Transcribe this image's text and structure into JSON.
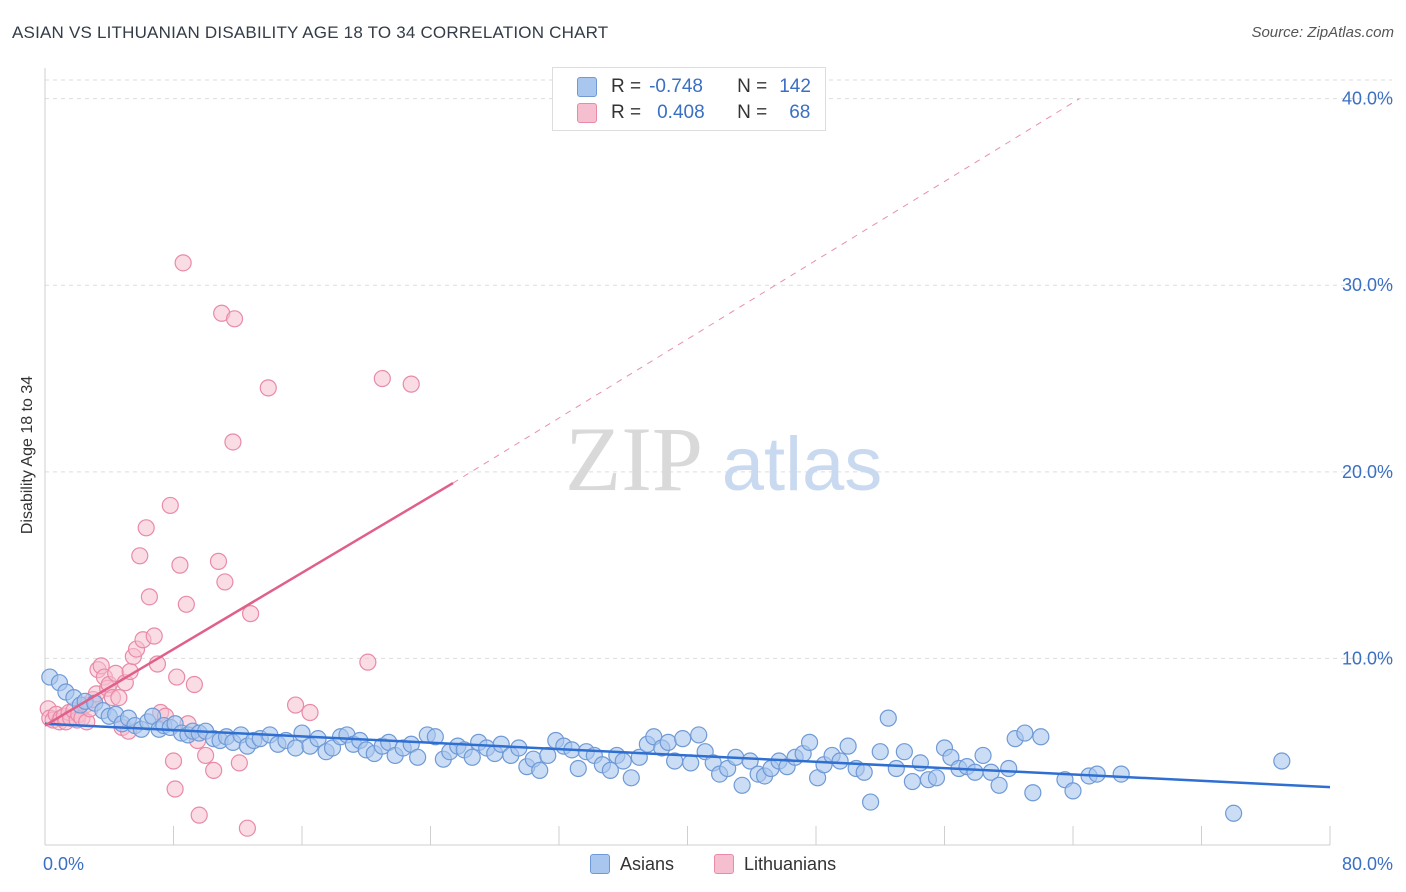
{
  "title": "ASIAN VS LITHUANIAN DISABILITY AGE 18 TO 34 CORRELATION CHART",
  "source": "Source: ZipAtlas.com",
  "watermark": {
    "zip": "ZIP",
    "atlas": "atlas"
  },
  "legend": {
    "asians": {
      "r_label": "R =",
      "r_value": "-0.748",
      "n_label": "N =",
      "n_value": "142"
    },
    "lithuanians": {
      "r_label": "R =",
      "r_value": "0.408",
      "n_label": "N =",
      "n_value": "68"
    }
  },
  "bottom_legend": {
    "asians": "Asians",
    "lithuanians": "Lithuanians"
  },
  "colors": {
    "asian_fill": "#a9c6ee",
    "asian_stroke": "#6f9ad6",
    "asian_line": "#2f6fd1",
    "lith_fill": "#f6bfd0",
    "lith_stroke": "#e98aa8",
    "lith_line": "#e0608a",
    "axis_text": "#3a6fc4",
    "grid": "#dddddd"
  },
  "chart_data": {
    "type": "scatter",
    "title": "ASIAN VS LITHUANIAN DISABILITY AGE 18 TO 34 CORRELATION CHART",
    "xlabel": "",
    "ylabel": "Disability Age 18 to 34",
    "xlim": [
      0,
      80
    ],
    "ylim": [
      0,
      41
    ],
    "x_tick_labels": [
      "0.0%",
      "80.0%"
    ],
    "y_ticks": [
      10,
      20,
      30,
      40
    ],
    "y_tick_labels": [
      "10.0%",
      "20.0%",
      "30.0%",
      "40.0%"
    ],
    "grid": true,
    "series": [
      {
        "name": "Asians",
        "R": -0.748,
        "N": 142,
        "trend": {
          "x": [
            0,
            80
          ],
          "y": [
            6.5,
            3.1
          ]
        },
        "points": [
          [
            0.3,
            9.0
          ],
          [
            0.9,
            8.7
          ],
          [
            1.3,
            8.2
          ],
          [
            1.8,
            7.9
          ],
          [
            2.2,
            7.5
          ],
          [
            2.5,
            7.7
          ],
          [
            3.1,
            7.6
          ],
          [
            3.6,
            7.2
          ],
          [
            4.0,
            6.9
          ],
          [
            4.4,
            7.0
          ],
          [
            4.8,
            6.5
          ],
          [
            5.2,
            6.8
          ],
          [
            5.6,
            6.4
          ],
          [
            6.0,
            6.2
          ],
          [
            6.4,
            6.6
          ],
          [
            6.7,
            6.9
          ],
          [
            7.1,
            6.2
          ],
          [
            7.4,
            6.4
          ],
          [
            7.8,
            6.3
          ],
          [
            8.1,
            6.5
          ],
          [
            8.5,
            6.0
          ],
          [
            8.9,
            5.9
          ],
          [
            9.2,
            6.1
          ],
          [
            9.6,
            6.0
          ],
          [
            10.0,
            6.1
          ],
          [
            10.5,
            5.7
          ],
          [
            10.9,
            5.6
          ],
          [
            11.3,
            5.8
          ],
          [
            11.7,
            5.5
          ],
          [
            12.2,
            5.9
          ],
          [
            12.6,
            5.3
          ],
          [
            13.0,
            5.6
          ],
          [
            13.4,
            5.7
          ],
          [
            14.0,
            5.9
          ],
          [
            14.5,
            5.4
          ],
          [
            15.0,
            5.6
          ],
          [
            15.6,
            5.2
          ],
          [
            16.0,
            6.0
          ],
          [
            16.5,
            5.3
          ],
          [
            17.0,
            5.7
          ],
          [
            17.5,
            5.0
          ],
          [
            17.9,
            5.2
          ],
          [
            18.4,
            5.8
          ],
          [
            18.8,
            5.9
          ],
          [
            19.2,
            5.4
          ],
          [
            19.6,
            5.6
          ],
          [
            20.0,
            5.1
          ],
          [
            20.5,
            4.9
          ],
          [
            21.0,
            5.3
          ],
          [
            21.4,
            5.5
          ],
          [
            21.8,
            4.8
          ],
          [
            22.3,
            5.2
          ],
          [
            22.8,
            5.4
          ],
          [
            23.2,
            4.7
          ],
          [
            23.8,
            5.9
          ],
          [
            24.3,
            5.8
          ],
          [
            24.8,
            4.6
          ],
          [
            25.2,
            5.0
          ],
          [
            25.7,
            5.3
          ],
          [
            26.1,
            5.1
          ],
          [
            26.6,
            4.7
          ],
          [
            27.0,
            5.5
          ],
          [
            27.5,
            5.2
          ],
          [
            28.0,
            4.9
          ],
          [
            28.4,
            5.4
          ],
          [
            29.0,
            4.8
          ],
          [
            29.5,
            5.2
          ],
          [
            30.0,
            4.2
          ],
          [
            30.4,
            4.6
          ],
          [
            30.8,
            4.0
          ],
          [
            31.3,
            4.8
          ],
          [
            31.8,
            5.6
          ],
          [
            32.3,
            5.3
          ],
          [
            32.8,
            5.1
          ],
          [
            33.2,
            4.1
          ],
          [
            33.7,
            5.0
          ],
          [
            34.2,
            4.8
          ],
          [
            34.7,
            4.3
          ],
          [
            35.2,
            4.0
          ],
          [
            35.6,
            4.8
          ],
          [
            36.0,
            4.5
          ],
          [
            36.5,
            3.6
          ],
          [
            37.0,
            4.7
          ],
          [
            37.5,
            5.4
          ],
          [
            37.9,
            5.8
          ],
          [
            38.4,
            5.2
          ],
          [
            38.8,
            5.5
          ],
          [
            39.2,
            4.5
          ],
          [
            39.7,
            5.7
          ],
          [
            40.2,
            4.4
          ],
          [
            40.7,
            5.9
          ],
          [
            41.1,
            5.0
          ],
          [
            41.6,
            4.4
          ],
          [
            42.0,
            3.8
          ],
          [
            42.5,
            4.1
          ],
          [
            43.0,
            4.7
          ],
          [
            43.4,
            3.2
          ],
          [
            43.9,
            4.5
          ],
          [
            44.4,
            3.8
          ],
          [
            44.8,
            3.7
          ],
          [
            45.2,
            4.1
          ],
          [
            45.7,
            4.5
          ],
          [
            46.2,
            4.2
          ],
          [
            46.7,
            4.7
          ],
          [
            47.2,
            4.9
          ],
          [
            47.6,
            5.5
          ],
          [
            48.1,
            3.6
          ],
          [
            48.5,
            4.3
          ],
          [
            49.0,
            4.8
          ],
          [
            49.5,
            4.5
          ],
          [
            50.0,
            5.3
          ],
          [
            50.5,
            4.1
          ],
          [
            51.0,
            3.9
          ],
          [
            51.4,
            2.3
          ],
          [
            52.0,
            5.0
          ],
          [
            52.5,
            6.8
          ],
          [
            53.0,
            4.1
          ],
          [
            53.5,
            5.0
          ],
          [
            54.0,
            3.4
          ],
          [
            54.5,
            4.4
          ],
          [
            55.0,
            3.5
          ],
          [
            55.5,
            3.6
          ],
          [
            56.0,
            5.2
          ],
          [
            56.4,
            4.7
          ],
          [
            56.9,
            4.1
          ],
          [
            57.4,
            4.2
          ],
          [
            57.9,
            3.9
          ],
          [
            58.4,
            4.8
          ],
          [
            58.9,
            3.9
          ],
          [
            59.4,
            3.2
          ],
          [
            60.0,
            4.1
          ],
          [
            60.4,
            5.7
          ],
          [
            61.0,
            6.0
          ],
          [
            61.5,
            2.8
          ],
          [
            62.0,
            5.8
          ],
          [
            63.5,
            3.5
          ],
          [
            64.0,
            2.9
          ],
          [
            65.0,
            3.7
          ],
          [
            65.5,
            3.8
          ],
          [
            67.0,
            3.8
          ],
          [
            74.0,
            1.7
          ],
          [
            77.0,
            4.5
          ]
        ]
      },
      {
        "name": "Lithuanians",
        "R": 0.408,
        "N": 68,
        "trend": {
          "x": [
            0,
            25.4
          ],
          "y": [
            6.4,
            19.4
          ]
        },
        "trend_extended": {
          "x": [
            25.4,
            64.4
          ],
          "y": [
            19.4,
            40
          ]
        },
        "points": [
          [
            0.2,
            7.3
          ],
          [
            0.3,
            6.8
          ],
          [
            0.5,
            6.7
          ],
          [
            0.7,
            7.0
          ],
          [
            0.9,
            6.6
          ],
          [
            1.0,
            6.8
          ],
          [
            1.2,
            6.9
          ],
          [
            1.3,
            6.6
          ],
          [
            1.5,
            7.1
          ],
          [
            1.6,
            6.8
          ],
          [
            1.8,
            7.2
          ],
          [
            2.0,
            6.7
          ],
          [
            2.1,
            7.0
          ],
          [
            2.3,
            6.8
          ],
          [
            2.5,
            7.5
          ],
          [
            2.6,
            6.6
          ],
          [
            2.8,
            7.3
          ],
          [
            3.0,
            7.8
          ],
          [
            3.2,
            8.1
          ],
          [
            3.3,
            9.4
          ],
          [
            3.5,
            9.6
          ],
          [
            3.7,
            9.0
          ],
          [
            3.9,
            8.4
          ],
          [
            4.0,
            8.6
          ],
          [
            4.2,
            7.9
          ],
          [
            4.4,
            9.2
          ],
          [
            4.6,
            7.9
          ],
          [
            4.8,
            6.3
          ],
          [
            5.0,
            8.7
          ],
          [
            5.2,
            6.1
          ],
          [
            5.3,
            9.3
          ],
          [
            5.5,
            10.1
          ],
          [
            5.7,
            10.5
          ],
          [
            5.9,
            15.5
          ],
          [
            6.1,
            11.0
          ],
          [
            6.3,
            17.0
          ],
          [
            6.5,
            13.3
          ],
          [
            6.8,
            11.2
          ],
          [
            7.0,
            9.7
          ],
          [
            7.2,
            7.1
          ],
          [
            7.5,
            6.9
          ],
          [
            7.8,
            18.2
          ],
          [
            8.0,
            4.5
          ],
          [
            8.1,
            3.0
          ],
          [
            8.2,
            9.0
          ],
          [
            8.4,
            15.0
          ],
          [
            8.6,
            31.2
          ],
          [
            8.8,
            12.9
          ],
          [
            9.3,
            8.6
          ],
          [
            9.5,
            5.6
          ],
          [
            9.6,
            1.6
          ],
          [
            10.0,
            4.8
          ],
          [
            10.5,
            4.0
          ],
          [
            10.8,
            15.2
          ],
          [
            11.0,
            28.5
          ],
          [
            11.2,
            14.1
          ],
          [
            11.7,
            21.6
          ],
          [
            11.8,
            28.2
          ],
          [
            12.1,
            4.4
          ],
          [
            12.6,
            0.9
          ],
          [
            12.8,
            12.4
          ],
          [
            13.9,
            24.5
          ],
          [
            15.6,
            7.5
          ],
          [
            16.5,
            7.1
          ],
          [
            20.1,
            9.8
          ],
          [
            21.0,
            25.0
          ],
          [
            22.8,
            24.7
          ],
          [
            8.9,
            6.5
          ]
        ]
      }
    ]
  }
}
